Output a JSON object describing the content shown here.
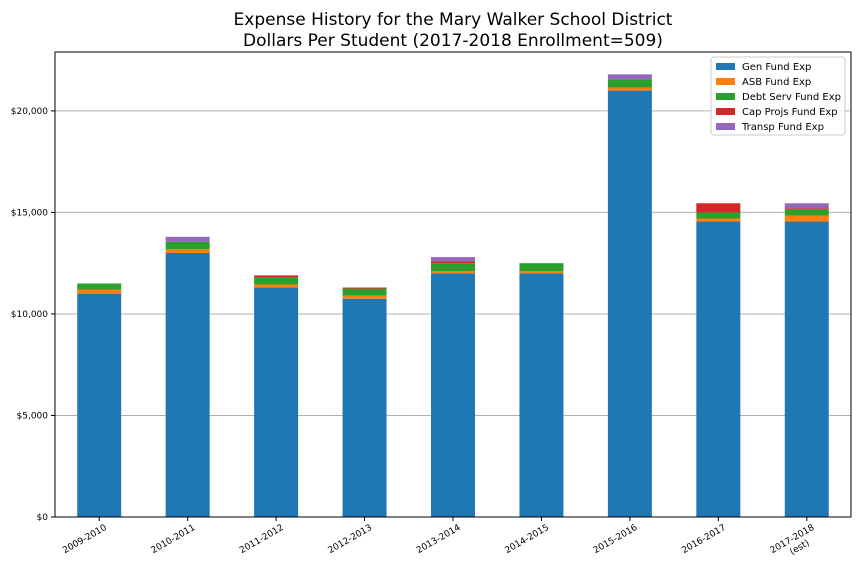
{
  "chart_data": {
    "type": "bar",
    "stacked": true,
    "title_lines": [
      "Expense History for the Mary Walker School District",
      "Dollars Per Student (2017-2018 Enrollment=509)"
    ],
    "categories": [
      [
        "2009-2010"
      ],
      [
        "2010-2011"
      ],
      [
        "2011-2012"
      ],
      [
        "2012-2013"
      ],
      [
        "2013-2014"
      ],
      [
        "2014-2015"
      ],
      [
        "2015-2016"
      ],
      [
        "2016-2017"
      ],
      [
        "2017-2018",
        "(est)"
      ]
    ],
    "series": [
      {
        "name": "Gen Fund Exp",
        "color": "#1f77b4",
        "values": [
          11000,
          13000,
          11300,
          10750,
          12000,
          12000,
          21000,
          14550,
          14550
        ]
      },
      {
        "name": "ASB Fund Exp",
        "color": "#ff7f0e",
        "values": [
          200,
          200,
          150,
          150,
          100,
          100,
          150,
          150,
          300
        ]
      },
      {
        "name": "Debt Serv Fund Exp",
        "color": "#2ca02c",
        "values": [
          300,
          350,
          350,
          350,
          400,
          400,
          400,
          300,
          300
        ]
      },
      {
        "name": "Cap Projs Fund Exp",
        "color": "#d62728",
        "values": [
          0,
          0,
          100,
          50,
          100,
          0,
          0,
          450,
          50
        ]
      },
      {
        "name": "Transp Fund Exp",
        "color": "#9467bd",
        "values": [
          0,
          250,
          0,
          0,
          200,
          0,
          250,
          0,
          250
        ]
      }
    ],
    "yticks": [
      0,
      5000,
      10000,
      15000,
      20000
    ],
    "ytick_labels": [
      "$0",
      "$5,000",
      "$10,000",
      "$15,000",
      "$20,000"
    ],
    "ylim": [
      0,
      22900
    ],
    "grid": "horizontal",
    "legend_position": "top-right"
  }
}
